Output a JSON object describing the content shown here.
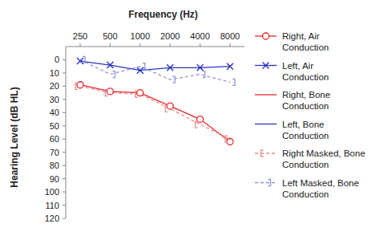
{
  "chart_data": {
    "type": "line",
    "title": "Frequency  (Hz)",
    "y_label": "Hearing Level (dB HL)",
    "categories": [
      "250",
      "500",
      "1000",
      "2000",
      "4000",
      "8000"
    ],
    "ylim": [
      -10,
      120
    ],
    "yticks": [
      0,
      10,
      20,
      30,
      40,
      50,
      60,
      70,
      80,
      90,
      100,
      110,
      120
    ],
    "grid": false,
    "legend": "right",
    "series": [
      {
        "name": "Right, Air Conduction",
        "color": "#e3262b",
        "marker": "circle",
        "line_style": "solid",
        "values": [
          19,
          24,
          25,
          35,
          45,
          62
        ]
      },
      {
        "name": "Left, Air Conduction",
        "color": "#2a35c4",
        "marker": "x",
        "line_style": "solid",
        "values": [
          1,
          4,
          8,
          6,
          6,
          5
        ]
      },
      {
        "name": "Right, Bone Conduction",
        "color": "#e3262b",
        "marker": "none",
        "line_style": "solid",
        "values": [
          null,
          null,
          null,
          null,
          null,
          null
        ]
      },
      {
        "name": "Left, Bone Conduction",
        "color": "#2a35c4",
        "marker": "none",
        "line_style": "solid",
        "values": [
          null,
          null,
          null,
          null,
          null,
          null
        ]
      },
      {
        "name": "Right Masked, Bone Conduction",
        "color": "#f08a8a",
        "marker": "bracket-left",
        "line_style": "dashed",
        "values": [
          20,
          25,
          26,
          37,
          49,
          60
        ]
      },
      {
        "name": "Left Masked, Bone Conduction",
        "color": "#8f95dc",
        "marker": "bracket-right",
        "line_style": "dashed",
        "values": [
          0,
          11,
          5,
          15,
          11,
          17
        ]
      }
    ]
  }
}
